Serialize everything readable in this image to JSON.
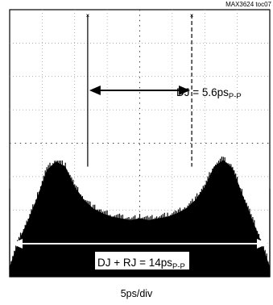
{
  "chart_data": {
    "type": "area",
    "figure_id": "MAX3624 toc07",
    "xlabel": "5ps/div",
    "grid": true,
    "divisions": {
      "x": 8,
      "y": 8
    },
    "ylim": [
      0,
      8
    ],
    "annotations": {
      "dj": {
        "prefix": "DJ = 5.6ps",
        "sub": "P-P"
      },
      "dj_rj": {
        "prefix": "DJ + RJ = 14ps",
        "sub": "P-P"
      }
    },
    "histogram": {
      "x": [
        -7.0,
        -6.5,
        -6.0,
        -5.5,
        -5.0,
        -4.5,
        -4.0,
        -3.5,
        -3.0,
        -2.5,
        -2.0,
        -1.5,
        -1.0,
        -0.5,
        0.0,
        0.5,
        1.0,
        1.5,
        2.0,
        2.5,
        3.0,
        3.5,
        4.0,
        4.5,
        5.0,
        5.5,
        6.0,
        6.5,
        7.0
      ],
      "y": [
        0.3,
        1.1,
        1.7,
        2.4,
        3.2,
        3.45,
        3.3,
        2.7,
        2.3,
        2.05,
        1.9,
        1.8,
        1.75,
        1.7,
        1.75,
        1.7,
        1.75,
        1.8,
        1.9,
        2.05,
        2.3,
        2.7,
        3.3,
        3.5,
        3.25,
        2.5,
        1.8,
        1.1,
        0.3
      ]
    },
    "dj_peaks_x": [
      -2.8,
      2.8
    ],
    "dj_rj_span_x": [
      -7.0,
      7.0
    ]
  }
}
